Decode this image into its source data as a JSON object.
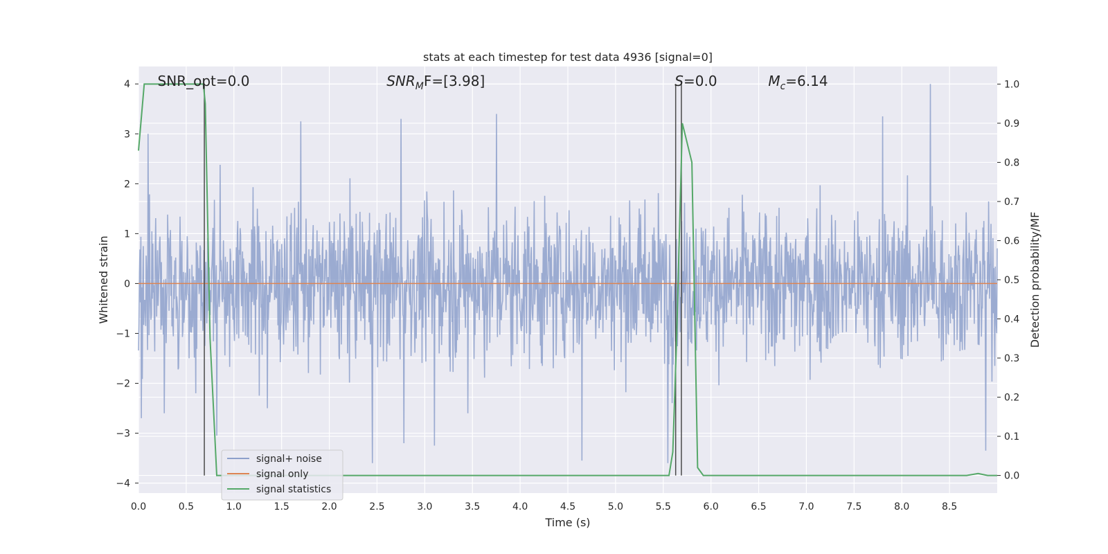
{
  "chart_data": {
    "type": "line",
    "title": "stats at each timestep for test data 4936 [signal=0]",
    "xlabel": "Time (s)",
    "ylabel": "Whitened strain",
    "ylabel_right": "Detection probability/MF",
    "xlim": [
      0,
      9.0
    ],
    "ylim": [
      -4.2,
      4.35
    ],
    "ylim_right": [
      -0.045,
      1.045
    ],
    "x_ticks": [
      0.0,
      0.5,
      1.0,
      1.5,
      2.0,
      2.5,
      3.0,
      3.5,
      4.0,
      4.5,
      5.0,
      5.5,
      6.0,
      6.5,
      7.0,
      7.5,
      8.0,
      8.5
    ],
    "x_tick_labels": [
      "0.0",
      "0.5",
      "1.0",
      "1.5",
      "2.0",
      "2.5",
      "3.0",
      "3.5",
      "4.0",
      "4.5",
      "5.0",
      "5.5",
      "6.0",
      "6.5",
      "7.0",
      "7.5",
      "8.0",
      "8.5"
    ],
    "y_ticks": [
      4,
      3,
      2,
      1,
      0,
      -1,
      -2,
      -3,
      -4
    ],
    "y_tick_labels": [
      "4",
      "3",
      "2",
      "1",
      "0",
      "−1",
      "−2",
      "−3",
      "−4"
    ],
    "y_right_ticks": [
      1.0,
      0.9,
      0.8,
      0.7,
      0.6,
      0.5,
      0.4,
      0.3,
      0.2,
      0.1,
      0.0
    ],
    "y_right_tick_labels": [
      "1.0",
      "0.9",
      "0.8",
      "0.7",
      "0.6",
      "0.5",
      "0.4",
      "0.3",
      "0.2",
      "0.1",
      "0.0"
    ],
    "grid": true,
    "legend_position": "lower-left",
    "legend": [
      "signal+ noise",
      "signal only",
      "signal statistics"
    ],
    "annotations": [
      {
        "prefix": "SNR_opt=0.0",
        "sub": "",
        "suffix": "",
        "italic": false,
        "x": 0.2
      },
      {
        "prefix": "SNR",
        "sub": "M",
        "suffix": "F=[3.98]",
        "italic": true,
        "x": 2.6
      },
      {
        "prefix": "S",
        "sub": "",
        "suffix": "=0.0",
        "italic": true,
        "x": 5.62
      },
      {
        "prefix": "M",
        "sub": "c",
        "suffix": "=6.14",
        "italic": true,
        "x": 6.6
      }
    ],
    "colors": {
      "signal_noise": "#8da0cb",
      "signal_only": "#dd8452",
      "signal_statistics": "#55a868",
      "vlines": "#4a4a4a",
      "background": "#eaeaf2",
      "grid": "#ffffff"
    },
    "series": [
      {
        "name": "signal+ noise",
        "axis": "left",
        "noise_std": 0.75,
        "samples": 1800,
        "x_range": [
          0,
          9.0
        ],
        "peaks": [
          [
            0.03,
            -2.7
          ],
          [
            0.1,
            3.0
          ],
          [
            0.27,
            -2.6
          ],
          [
            0.6,
            -2.2
          ],
          [
            0.82,
            -3.05
          ],
          [
            1.35,
            -2.5
          ],
          [
            1.7,
            3.25
          ],
          [
            2.45,
            -3.6
          ],
          [
            2.75,
            3.3
          ],
          [
            2.78,
            -3.2
          ],
          [
            3.1,
            -3.25
          ],
          [
            3.45,
            -2.6
          ],
          [
            3.75,
            3.4
          ],
          [
            4.65,
            -3.55
          ],
          [
            5.55,
            -3.6
          ],
          [
            7.8,
            3.35
          ],
          [
            8.3,
            4.0
          ],
          [
            8.88,
            -3.35
          ]
        ]
      },
      {
        "name": "signal only",
        "axis": "left",
        "x": [
          0,
          9.0
        ],
        "y": [
          0,
          0
        ]
      },
      {
        "name": "signal statistics",
        "axis": "right",
        "x": [
          0.0,
          0.06,
          0.12,
          0.2,
          0.4,
          0.6,
          0.68,
          0.7,
          0.75,
          0.82,
          1.0,
          2.0,
          3.0,
          4.0,
          5.0,
          5.5,
          5.56,
          5.6,
          5.64,
          5.7,
          5.8,
          5.86,
          5.92,
          6.0,
          7.0,
          8.0,
          8.68,
          8.8,
          8.9,
          9.0
        ],
        "y": [
          0.83,
          1.0,
          1.0,
          1.0,
          1.0,
          1.0,
          1.0,
          0.95,
          0.35,
          0.0,
          0.0,
          0.0,
          0.0,
          0.0,
          0.0,
          0.0,
          0.0,
          0.06,
          0.35,
          0.9,
          0.8,
          0.02,
          0.0,
          0.0,
          0.0,
          0.0,
          0.0,
          0.005,
          0.0,
          0.0
        ]
      }
    ],
    "vertical_lines": [
      0.69,
      5.63,
      5.69
    ]
  }
}
